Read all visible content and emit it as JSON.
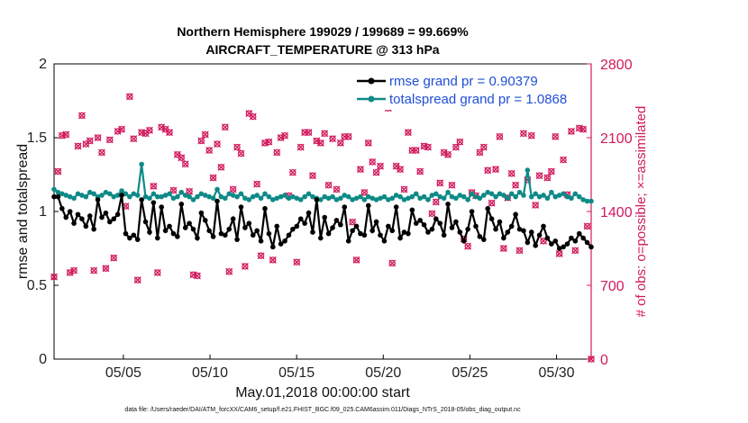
{
  "chart_data": {
    "type": "line",
    "title_line1": "Northern Hemisphere 199029 / 199689 = 99.669%",
    "title_line2": "AIRCRAFT_TEMPERATURE @ 313 hPa",
    "xlabel": "May.01,2018 00:00:00 start",
    "ylabel_left": "rmse and totalspread",
    "ylabel_right": "# of obs: o=possible; ×=assimilated",
    "ylim_left": [
      0,
      2
    ],
    "ylim_right": [
      0,
      2800
    ],
    "xlim": [
      1,
      32
    ],
    "x_ticks": [
      5,
      10,
      15,
      20,
      25,
      30
    ],
    "x_tick_labels": [
      "05/05",
      "05/10",
      "05/15",
      "05/20",
      "05/25",
      "05/30"
    ],
    "y_left_ticks": [
      "0",
      "0.5",
      "1",
      "1.5",
      "2"
    ],
    "y_left_tick_values": [
      0,
      0.5,
      1,
      1.5,
      2
    ],
    "y_right_ticks": [
      "0",
      "700",
      "1400",
      "2100",
      "2800"
    ],
    "y_right_tick_values": [
      0,
      700,
      1400,
      2100,
      2800
    ],
    "footnote": "data file: /Users/raeder/DAI/ATM_forcXX/CAM6_setup/f.e21.FHIST_BGC.f09_025.CAM6assim.011/Diags_NTrS_2018-05/obs_diag_output.nc",
    "colors": {
      "rmse": "#000000",
      "spread": "#0e8a87",
      "obs": "#d11a5d",
      "legend_text": "#1f4fd6"
    },
    "series": [
      {
        "name": "rmse grand pr = 0.90379",
        "values": [
          1.1,
          1.1,
          1.02,
          0.96,
          1.0,
          0.92,
          0.98,
          0.95,
          0.9,
          0.97,
          0.88,
          1.08,
          0.96,
          0.99,
          0.93,
          0.95,
          0.98,
          1.11,
          0.85,
          0.82,
          0.84,
          0.81,
          1.08,
          0.93,
          0.86,
          1.06,
          0.82,
          1.03,
          0.87,
          0.9,
          0.85,
          0.83,
          1.05,
          0.89,
          0.92,
          0.88,
          0.82,
          0.99,
          0.94,
          0.87,
          0.83,
          1.07,
          0.85,
          0.84,
          0.88,
          0.95,
          0.81,
          1.03,
          0.89,
          0.92,
          0.84,
          0.87,
          0.8,
          1.02,
          0.85,
          0.76,
          0.9,
          0.78,
          0.8,
          0.84,
          0.88,
          0.9,
          0.95,
          0.92,
          0.99,
          0.86,
          1.08,
          0.82,
          0.96,
          0.85,
          0.89,
          0.94,
          0.91,
          1.03,
          0.8,
          0.87,
          0.9,
          0.85,
          0.84,
          1.04,
          0.87,
          0.93,
          0.84,
          0.8,
          0.9,
          0.87,
          1.03,
          0.82,
          0.86,
          0.85,
          1.01,
          0.92,
          0.94,
          0.91,
          0.86,
          0.88,
          0.95,
          0.92,
          0.84,
          1.05,
          0.89,
          0.93,
          0.86,
          0.8,
          0.88,
          1.0,
          0.9,
          0.83,
          0.81,
          1.02,
          0.95,
          0.88,
          0.93,
          0.82,
          0.86,
          0.9,
          0.98,
          0.88,
          0.87,
          0.79,
          0.86,
          0.77,
          0.84,
          0.9,
          0.82,
          0.78,
          0.8,
          0.75,
          0.76,
          0.78,
          0.82,
          0.8,
          0.85,
          0.82,
          0.79,
          0.76
        ]
      },
      {
        "name": "totalspread grand pr = 1.0868",
        "values": [
          1.15,
          1.13,
          1.12,
          1.11,
          1.1,
          1.09,
          1.12,
          1.11,
          1.1,
          1.13,
          1.12,
          1.1,
          1.11,
          1.13,
          1.12,
          1.1,
          1.11,
          1.14,
          1.12,
          1.1,
          1.12,
          1.11,
          1.32,
          1.1,
          1.09,
          1.12,
          1.1,
          1.1,
          1.11,
          1.12,
          1.09,
          1.1,
          1.13,
          1.11,
          1.1,
          1.08,
          1.1,
          1.12,
          1.11,
          1.1,
          1.09,
          1.15,
          1.1,
          1.09,
          1.12,
          1.11,
          1.1,
          1.12,
          1.09,
          1.08,
          1.1,
          1.11,
          1.09,
          1.12,
          1.1,
          1.08,
          1.09,
          1.1,
          1.11,
          1.09,
          1.1,
          1.09,
          1.08,
          1.1,
          1.12,
          1.1,
          1.09,
          1.08,
          1.1,
          1.09,
          1.1,
          1.08,
          1.09,
          1.11,
          1.1,
          1.08,
          1.09,
          1.1,
          1.08,
          1.1,
          1.09,
          1.08,
          1.09,
          1.1,
          1.08,
          1.09,
          1.11,
          1.1,
          1.08,
          1.09,
          1.1,
          1.12,
          1.09,
          1.1,
          1.08,
          1.11,
          1.12,
          1.1,
          1.09,
          1.13,
          1.1,
          1.09,
          1.11,
          1.1,
          1.08,
          1.12,
          1.1,
          1.09,
          1.11,
          1.13,
          1.12,
          1.1,
          1.12,
          1.11,
          1.09,
          1.12,
          1.1,
          1.13,
          1.11,
          1.28,
          1.1,
          1.12,
          1.1,
          1.11,
          1.09,
          1.13,
          1.1,
          1.11,
          1.12,
          1.1,
          1.09,
          1.12,
          1.1,
          1.08,
          1.07,
          1.07
        ]
      },
      {
        "name": "obs possible / assimilated",
        "values": [
          780,
          1780,
          2120,
          2130,
          820,
          840,
          2020,
          2310,
          2040,
          2070,
          840,
          2100,
          1960,
          860,
          2080,
          960,
          2160,
          2180,
          1450,
          2490,
          2090,
          750,
          2150,
          2140,
          2170,
          1640,
          820,
          2200,
          2180,
          2150,
          1600,
          1940,
          1910,
          1850,
          1590,
          800,
          790,
          2070,
          2130,
          1980,
          1720,
          2040,
          1820,
          2200,
          830,
          1610,
          2010,
          1950,
          880,
          2330,
          2300,
          1660,
          980,
          2050,
          2060,
          940,
          1960,
          2100,
          2120,
          1550,
          1770,
          920,
          2010,
          2150,
          2150,
          1740,
          2070,
          2050,
          2140,
          1650,
          2090,
          1610,
          2050,
          2110,
          2110,
          1300,
          940,
          1800,
          1580,
          2050,
          1870,
          1770,
          1830,
          2410,
          2380,
          910,
          1830,
          1800,
          1610,
          2150,
          1980,
          1980,
          1780,
          2020,
          2010,
          1380,
          1490,
          1670,
          1960,
          1940,
          1650,
          2010,
          2060,
          1140,
          1070,
          1580,
          1550,
          1960,
          2010,
          1790,
          1480,
          1800,
          2110,
          1050,
          1530,
          1760,
          1650,
          1030,
          2140,
          1700,
          2120,
          1460,
          1740,
          1120,
          1720,
          1780,
          2110,
          1000,
          1890,
          1560,
          2160,
          1030,
          2190,
          2180,
          1260,
          0
        ]
      }
    ],
    "legend": [
      {
        "label": "rmse grand pr = 0.90379"
      },
      {
        "label": "totalspread grand pr = 1.0868"
      }
    ]
  }
}
